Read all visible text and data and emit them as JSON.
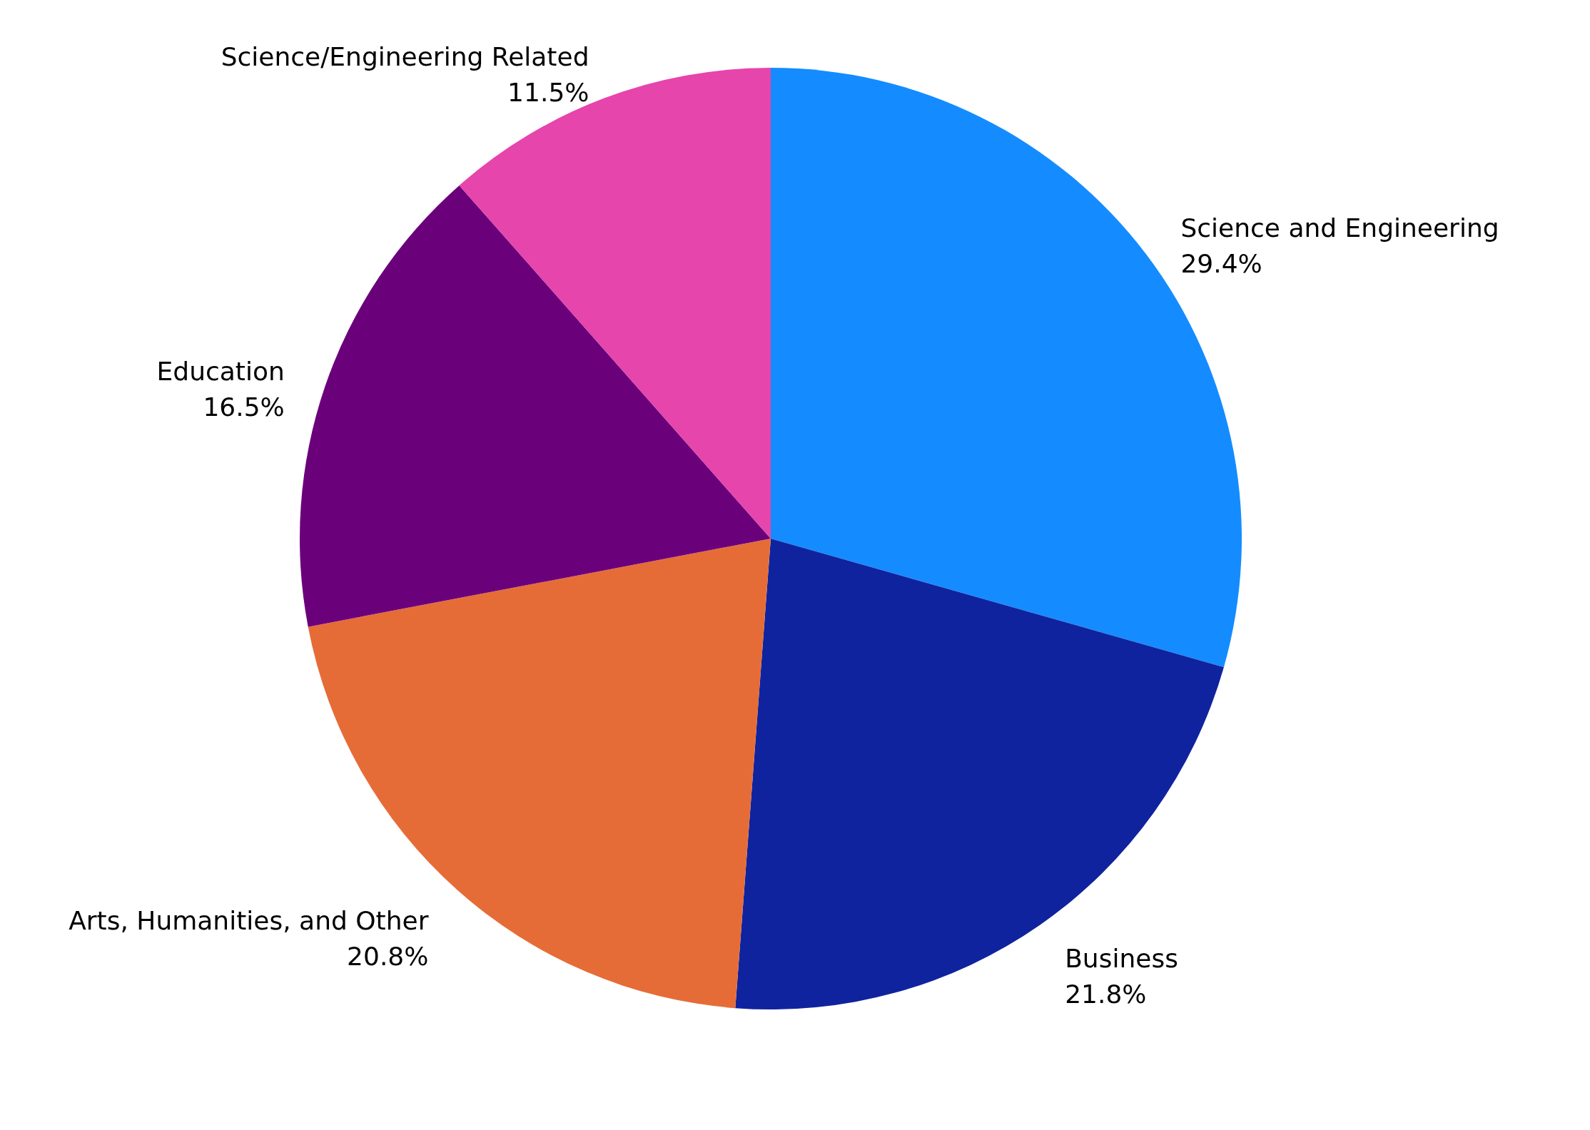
{
  "chart_data": {
    "type": "pie",
    "categories": [
      "Science and Engineering",
      "Business",
      "Arts, Humanities, and Other",
      "Education",
      "Science/Engineering Related"
    ],
    "values": [
      29.4,
      21.8,
      20.8,
      16.5,
      11.5
    ],
    "value_labels": [
      "29.4%",
      "21.8%",
      "20.8%",
      "16.5%",
      "11.5%"
    ],
    "colors": [
      "#148cff",
      "#10239e",
      "#e66c37",
      "#6b007b",
      "#e645ab"
    ],
    "data_labels": true,
    "legend": false
  }
}
